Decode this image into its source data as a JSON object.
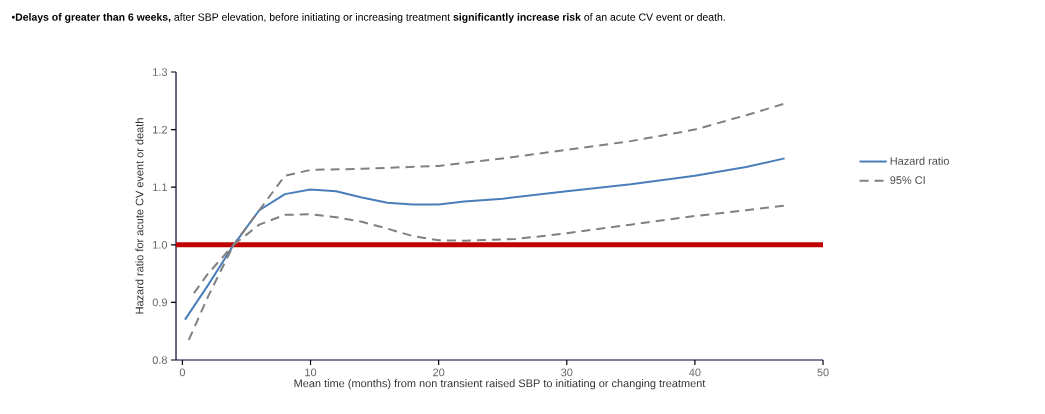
{
  "chart_data": {
    "type": "line",
    "title": "•**Delays of greater than 6 weeks,** after SBP elevation, before initiating or increasing treatment **significantly increase risk** of an acute CV event or death.",
    "xlabel": "Mean time (months) from non transient raised SBP to initiating or changing treatment",
    "ylabel": "Hazard ratio for acute CV event or death",
    "xlim": [
      -0.5,
      50
    ],
    "ylim": [
      0.8,
      1.3
    ],
    "xticks": [
      0,
      10,
      20,
      30,
      40,
      50
    ],
    "yticks": [
      0.8,
      0.9,
      {
        "value": 1.0,
        "label": "1.0"
      },
      1.1,
      1.2,
      1.3
    ],
    "grid": false,
    "legend": "right",
    "marker": "none",
    "series": [
      {
        "name": "Hazard ratio",
        "color": "#4a7ebb",
        "line_style": "solid",
        "x": [
          0.2,
          2,
          4,
          6,
          8,
          10,
          12,
          14,
          16,
          18,
          20,
          22,
          25,
          30,
          35,
          40,
          44,
          47
        ],
        "values": [
          0.87,
          0.93,
          1.0,
          1.06,
          1.088,
          1.096,
          1.093,
          1.082,
          1.073,
          1.07,
          1.07,
          1.075,
          1.08,
          1.093,
          1.105,
          1.12,
          1.135,
          1.15
        ]
      },
      {
        "name": "95% CI",
        "color": "#808080",
        "line_style": "dashed",
        "x": [
          0.9,
          2,
          4,
          6,
          8,
          10,
          14,
          20,
          25,
          30,
          35,
          40,
          44,
          47
        ],
        "values": [
          0.916,
          0.95,
          1.0,
          1.06,
          1.12,
          1.13,
          1.132,
          1.137,
          1.15,
          1.165,
          1.18,
          1.2,
          1.225,
          1.245
        ]
      },
      {
        "color": "#808080",
        "line_style": "dashed",
        "x": [
          0.5,
          2,
          4,
          6,
          8,
          10,
          12,
          14,
          16,
          18,
          20,
          22,
          26,
          30,
          35,
          40,
          44,
          47
        ],
        "values": [
          0.835,
          0.91,
          1.0,
          1.035,
          1.052,
          1.053,
          1.048,
          1.04,
          1.028,
          1.015,
          1.008,
          1.007,
          1.01,
          1.02,
          1.035,
          1.05,
          1.06,
          1.068
        ]
      }
    ],
    "ref_lines": [
      {
        "axis": "y",
        "value": 1.0,
        "color": "#c00000"
      }
    ]
  }
}
